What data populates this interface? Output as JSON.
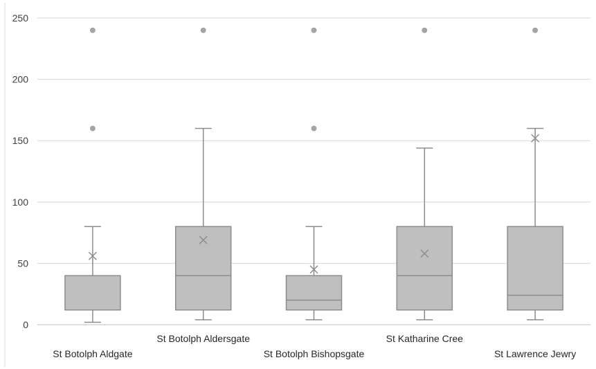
{
  "chart_data": {
    "type": "box",
    "title": "",
    "xlabel": "",
    "ylabel": "",
    "ylim": [
      0,
      250
    ],
    "yticks": [
      0,
      50,
      100,
      150,
      200,
      250
    ],
    "grid": "horizontal",
    "legend": "none",
    "colors": {
      "box_fill": "#bfbfbf",
      "box_stroke": "#8c8c8c",
      "whisker": "#8c8c8c",
      "outlier": "#a6a6a6",
      "gridline": "#d9d9d9",
      "axis": "#bfbfbf"
    },
    "categories": [
      "St Botolph Aldgate",
      "St Botolph Aldersgate",
      "St Botolph Bishopsgate",
      "St Katharine Cree",
      "St Lawrence Jewry"
    ],
    "boxes": [
      {
        "category": "St Botolph Aldgate",
        "min": 2,
        "q1": 12,
        "median": 12,
        "q3": 40,
        "max": 80,
        "mean": 56,
        "outliers": [
          160,
          240
        ]
      },
      {
        "category": "St Botolph Aldersgate",
        "min": 4,
        "q1": 12,
        "median": 40,
        "q3": 80,
        "max": 160,
        "mean": 69,
        "outliers": [
          240
        ]
      },
      {
        "category": "St Botolph Bishopsgate",
        "min": 4,
        "q1": 12,
        "median": 20,
        "q3": 40,
        "max": 80,
        "mean": 45,
        "outliers": [
          160,
          240
        ]
      },
      {
        "category": "St Katharine Cree",
        "min": 4,
        "q1": 12,
        "median": 40,
        "q3": 80,
        "max": 144,
        "mean": 58,
        "outliers": [
          240
        ]
      },
      {
        "category": "St Lawrence Jewry",
        "min": 4,
        "q1": 12,
        "median": 24,
        "q3": 80,
        "max": 160,
        "mean": 152,
        "outliers": [
          240
        ]
      }
    ]
  }
}
